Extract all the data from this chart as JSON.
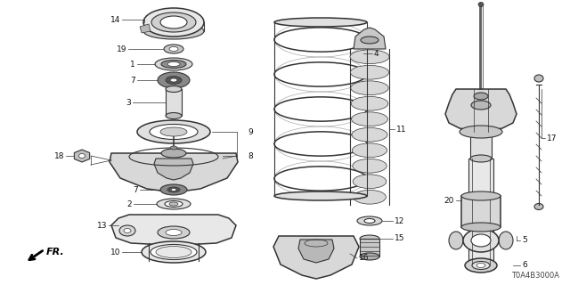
{
  "background_color": "#ffffff",
  "image_code_ref": "T0A4B3000A",
  "fr_label": "FR.",
  "line_color": "#333333",
  "text_color": "#111111",
  "font_size": 6.5,
  "code_font_size": 6
}
